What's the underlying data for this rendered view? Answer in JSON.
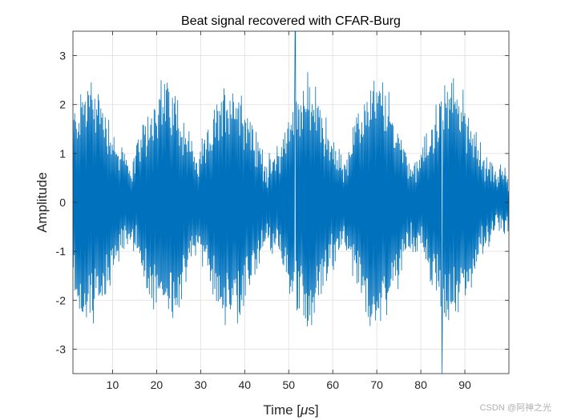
{
  "chart_data": {
    "type": "line",
    "title": "Beat signal recovered with CFAR-Burg",
    "xlabel_prefix": "Time [",
    "xlabel_mu": "μ",
    "xlabel_suffix": "s]",
    "ylabel": "Amplitude",
    "xlim": [
      1,
      100
    ],
    "ylim": [
      -3.5,
      3.5
    ],
    "xticks": [
      10,
      20,
      30,
      40,
      50,
      60,
      70,
      80,
      90
    ],
    "yticks": [
      -3,
      -2,
      -1,
      0,
      1,
      2,
      3
    ],
    "grid": true,
    "series": [
      {
        "name": "Beat signal",
        "color": "#0072BD",
        "num_samples": 1000,
        "envelope_peak": 2.5,
        "envelope_min": 0.55,
        "beat_period_us": 16.5,
        "peak_times_us": [
          5,
          22,
          37,
          54,
          70,
          87
        ],
        "spike_times_us": [
          51.5,
          84.8
        ],
        "spike_values": [
          3.5,
          -3.5
        ]
      }
    ]
  },
  "watermark": "CSDN @阿神之光"
}
